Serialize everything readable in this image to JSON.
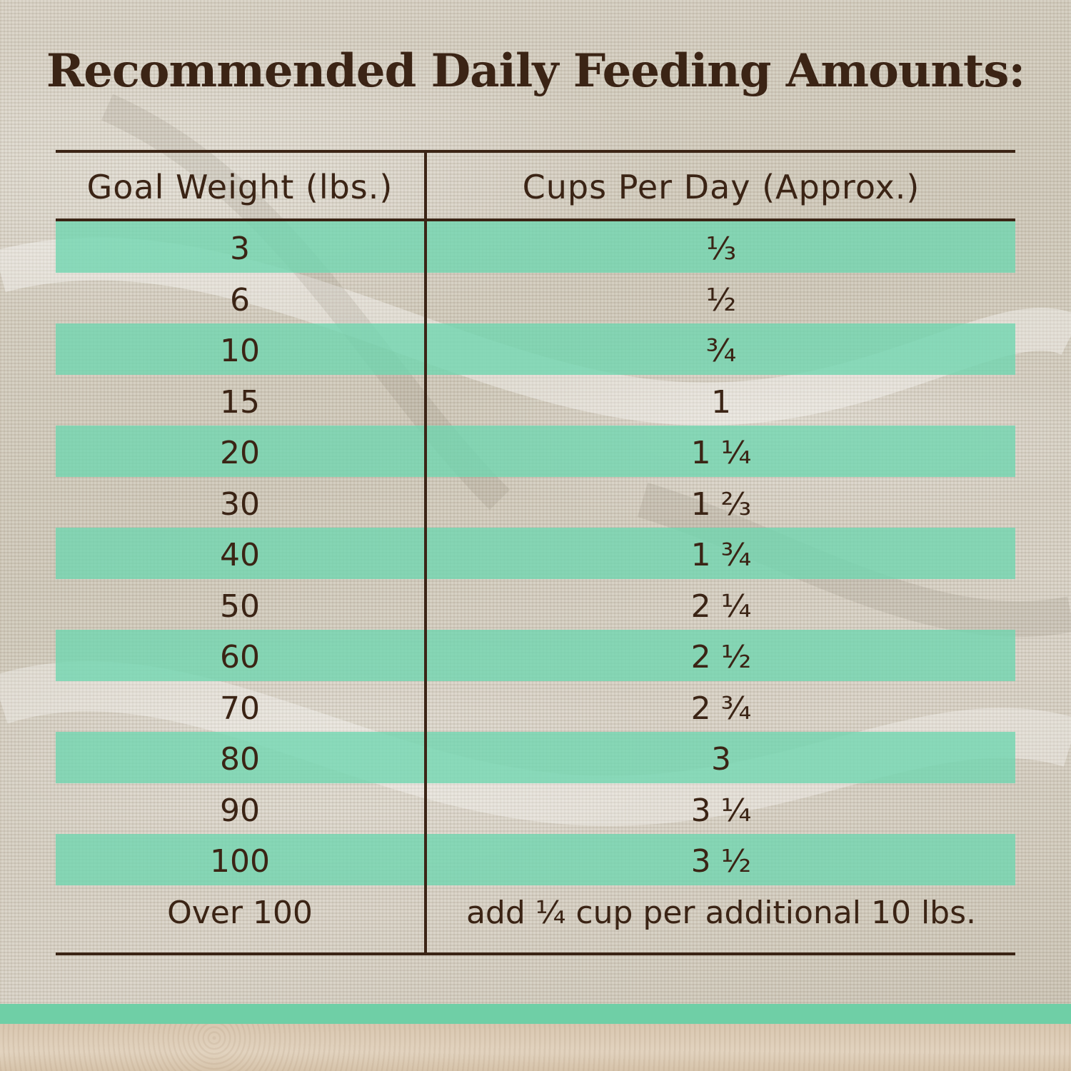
{
  "title": "Recommended Daily Feeding Amounts:",
  "table": {
    "headers": {
      "goal_weight": "Goal Weight (lbs.)",
      "cups_per_day": "Cups Per Day (Approx.)"
    },
    "rows": [
      {
        "weight": "3",
        "cups": "⅓"
      },
      {
        "weight": "6",
        "cups": "½"
      },
      {
        "weight": "10",
        "cups": "¾"
      },
      {
        "weight": "15",
        "cups": "1"
      },
      {
        "weight": "20",
        "cups": "1 ¼"
      },
      {
        "weight": "30",
        "cups": "1 ⅔"
      },
      {
        "weight": "40",
        "cups": "1 ¾"
      },
      {
        "weight": "50",
        "cups": "2 ¼"
      },
      {
        "weight": "60",
        "cups": "2 ½"
      },
      {
        "weight": "70",
        "cups": "2 ¾"
      },
      {
        "weight": "80",
        "cups": "3"
      },
      {
        "weight": "90",
        "cups": "3 ¼"
      },
      {
        "weight": "100",
        "cups": "3 ½"
      },
      {
        "weight": "Over 100",
        "cups": "add ¼ cup per additional 10 lbs."
      }
    ]
  },
  "colors": {
    "text": "#3b2415",
    "band": "#6ed6b0",
    "footer_band": "#6fcfa6"
  }
}
